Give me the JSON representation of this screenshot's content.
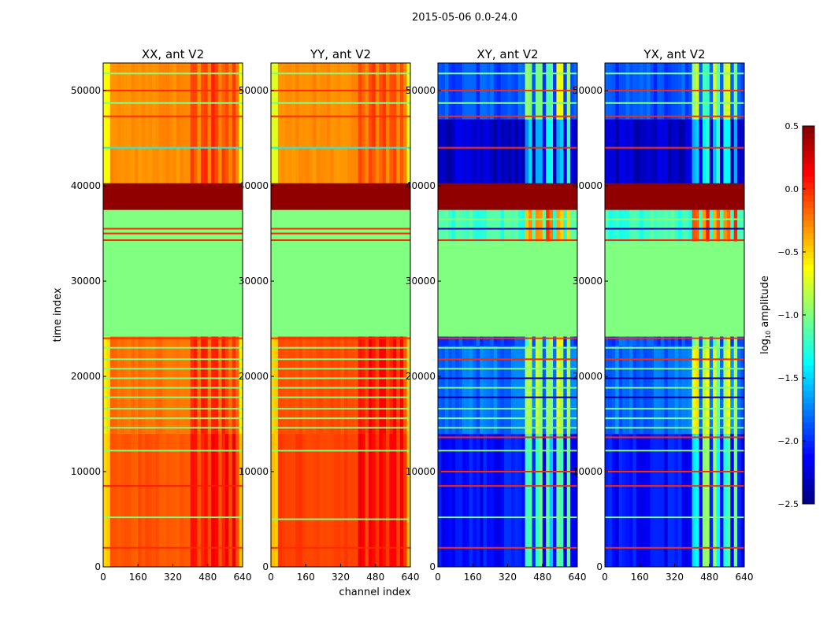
{
  "chart_data": {
    "type": "heatmap",
    "title": "2015-05-06 0.0-24.0",
    "xlabel": "channel index",
    "ylabel": "time index",
    "xlim": [
      0,
      640
    ],
    "ylim": [
      0,
      52900
    ],
    "xticks": [
      "0",
      "160",
      "320",
      "480",
      "640"
    ],
    "yticks": [
      "0",
      "10000",
      "20000",
      "30000",
      "40000",
      "50000"
    ],
    "colorbar": {
      "label_main": "log",
      "label_sub": "10",
      "label_rest": " amplitude",
      "range": [
        -2.5,
        0.5
      ],
      "colormap": "jet",
      "ticks": [
        "0.5",
        "0.0",
        "−0.5",
        "−1.0",
        "−1.5",
        "−2.0",
        "−2.5"
      ],
      "tick_values": [
        0.5,
        0.0,
        -0.5,
        -1.0,
        -1.5,
        -2.0,
        -2.5
      ]
    },
    "panels": [
      {
        "title": "XX, ant V2",
        "hot_boost": 0.25,
        "edge_drop": -0.35,
        "bands": [
          [
            0,
            14000,
            -0.12
          ],
          [
            14000,
            24200,
            -0.2
          ],
          [
            24200,
            34200,
            -1.0
          ],
          [
            34200,
            37500,
            -1.0
          ],
          [
            37500,
            40300,
            0.45
          ],
          [
            40300,
            44000,
            -0.3
          ],
          [
            44000,
            52900,
            -0.28
          ]
        ],
        "lines": [
          [
            2000,
            0.0
          ],
          [
            5200,
            -1.0
          ],
          [
            8500,
            0.05
          ],
          [
            12200,
            -1.0
          ],
          [
            14600,
            -1.0
          ],
          [
            15600,
            -1.0
          ],
          [
            16600,
            -1.0
          ],
          [
            17800,
            -1.0
          ],
          [
            18800,
            -1.0
          ],
          [
            19800,
            -1.0
          ],
          [
            20800,
            -1.0
          ],
          [
            21800,
            -1.0
          ],
          [
            23000,
            -1.0
          ],
          [
            24000,
            0.0
          ],
          [
            34300,
            0.0
          ],
          [
            35000,
            0.0
          ],
          [
            35500,
            0.0
          ],
          [
            44000,
            -1.4
          ],
          [
            47300,
            0.0
          ],
          [
            48700,
            -1.0
          ],
          [
            50000,
            0.0
          ],
          [
            51800,
            -1.0
          ]
        ]
      },
      {
        "title": "YY, ant V2",
        "hot_boost": 0.2,
        "edge_drop": -0.4,
        "bands": [
          [
            0,
            14000,
            -0.05
          ],
          [
            14000,
            24200,
            -0.1
          ],
          [
            24200,
            34200,
            -1.0
          ],
          [
            34200,
            37500,
            -1.0
          ],
          [
            37500,
            40300,
            0.45
          ],
          [
            40300,
            44000,
            -0.3
          ],
          [
            44000,
            52900,
            -0.28
          ]
        ],
        "lines": [
          [
            2000,
            0.0
          ],
          [
            5000,
            -1.0
          ],
          [
            12200,
            -1.0
          ],
          [
            14600,
            -1.0
          ],
          [
            15600,
            -1.0
          ],
          [
            16600,
            -1.0
          ],
          [
            17800,
            -1.0
          ],
          [
            18800,
            -1.0
          ],
          [
            19800,
            -1.0
          ],
          [
            20800,
            -1.0
          ],
          [
            21800,
            -1.0
          ],
          [
            23000,
            -1.0
          ],
          [
            24000,
            0.0
          ],
          [
            34300,
            0.0
          ],
          [
            35000,
            0.0
          ],
          [
            35500,
            0.0
          ],
          [
            44000,
            -1.4
          ],
          [
            47300,
            0.0
          ],
          [
            48700,
            -1.0
          ],
          [
            50000,
            0.0
          ],
          [
            51800,
            -1.0
          ]
        ]
      },
      {
        "title": "XY, ant V2",
        "hot_boost": 1.0,
        "edge_drop": 0.0,
        "bands": [
          [
            0,
            14000,
            -2.1
          ],
          [
            14000,
            23200,
            -1.8
          ],
          [
            23200,
            24200,
            -1.9
          ],
          [
            24200,
            34200,
            -1.0
          ],
          [
            34200,
            37500,
            -1.2
          ],
          [
            37500,
            40300,
            0.45
          ],
          [
            40300,
            47000,
            -2.3
          ],
          [
            47000,
            52900,
            -1.9
          ]
        ],
        "lines": [
          [
            2000,
            0.0
          ],
          [
            5200,
            -1.0
          ],
          [
            8500,
            0.0
          ],
          [
            10000,
            0.0
          ],
          [
            12200,
            -1.0
          ],
          [
            13600,
            0.0
          ],
          [
            14600,
            -1.0
          ],
          [
            15600,
            -1.0
          ],
          [
            16600,
            -1.0
          ],
          [
            17800,
            -2.4
          ],
          [
            18800,
            -1.0
          ],
          [
            19800,
            -2.4
          ],
          [
            20800,
            -1.0
          ],
          [
            21800,
            0.0
          ],
          [
            23000,
            -1.0
          ],
          [
            24000,
            0.0
          ],
          [
            34300,
            0.0
          ],
          [
            35500,
            -2.4
          ],
          [
            36500,
            -1.0
          ],
          [
            44000,
            0.0
          ],
          [
            47300,
            0.0
          ],
          [
            48700,
            -1.0
          ],
          [
            50000,
            0.0
          ],
          [
            51800,
            -1.0
          ]
        ]
      },
      {
        "title": "YX, ant V2",
        "hot_boost": 1.0,
        "edge_drop": 0.0,
        "bands": [
          [
            0,
            14000,
            -2.1
          ],
          [
            14000,
            23200,
            -1.8
          ],
          [
            23200,
            24200,
            -1.9
          ],
          [
            24200,
            34200,
            -1.0
          ],
          [
            34200,
            37500,
            -1.2
          ],
          [
            37500,
            40300,
            0.45
          ],
          [
            40300,
            47000,
            -2.3
          ],
          [
            47000,
            52900,
            -1.9
          ]
        ],
        "lines": [
          [
            2000,
            0.0
          ],
          [
            5200,
            -1.0
          ],
          [
            8500,
            0.0
          ],
          [
            10000,
            0.0
          ],
          [
            12200,
            -1.0
          ],
          [
            13600,
            0.0
          ],
          [
            14600,
            -1.0
          ],
          [
            15600,
            -1.0
          ],
          [
            16600,
            -1.0
          ],
          [
            17800,
            -2.4
          ],
          [
            18800,
            -1.0
          ],
          [
            19800,
            -2.4
          ],
          [
            20800,
            -1.0
          ],
          [
            21800,
            0.0
          ],
          [
            23000,
            -1.0
          ],
          [
            24000,
            0.0
          ],
          [
            34300,
            0.0
          ],
          [
            35500,
            -2.4
          ],
          [
            36500,
            -1.0
          ],
          [
            44000,
            0.0
          ],
          [
            47300,
            0.0
          ],
          [
            48700,
            -1.0
          ],
          [
            50000,
            0.0
          ],
          [
            51800,
            -1.0
          ]
        ]
      }
    ]
  }
}
